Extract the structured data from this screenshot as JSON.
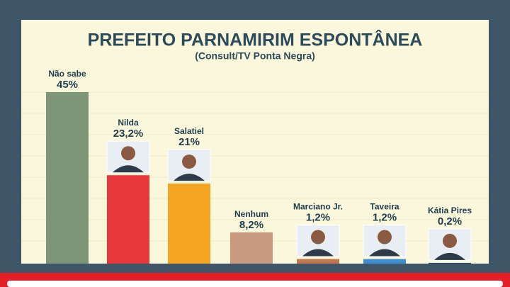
{
  "chart_data": {
    "type": "bar",
    "title": "PREFEITO PARNAMIRIM ESPONTÂNEA",
    "subtitle": "(Consult/TV Ponta Negra)",
    "categories": [
      "Não sabe",
      "Nilda",
      "Salatiel",
      "Nenhum",
      "Marciano Jr.",
      "Taveira",
      "Kátia Pires"
    ],
    "values": [
      45,
      23.2,
      21,
      8.2,
      1.2,
      1.2,
      0.2
    ],
    "value_labels": [
      "45%",
      "23,2%",
      "21%",
      "8,2%",
      "1,2%",
      "1,2%",
      "0,2%"
    ],
    "colors": [
      "#7d9677",
      "#e6373b",
      "#f5a524",
      "#c99c82",
      "#c4774e",
      "#3f8fcf",
      "#1f4f6e"
    ]
  }
}
